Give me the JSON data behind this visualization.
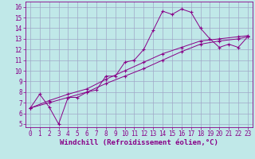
{
  "xlabel": "Windchill (Refroidissement éolien,°C)",
  "xlim_min": -0.5,
  "xlim_max": 23.5,
  "ylim_min": 4.7,
  "ylim_max": 16.5,
  "xticks": [
    0,
    1,
    2,
    3,
    4,
    5,
    6,
    7,
    8,
    9,
    10,
    11,
    12,
    13,
    14,
    15,
    16,
    17,
    18,
    19,
    20,
    21,
    22,
    23
  ],
  "yticks": [
    5,
    6,
    7,
    8,
    9,
    10,
    11,
    12,
    13,
    14,
    15,
    16
  ],
  "background_color": "#c0e8e8",
  "grid_color": "#a0a8c8",
  "line_color": "#880088",
  "line1_x": [
    0,
    1,
    2,
    3,
    4,
    5,
    6,
    7,
    8,
    9,
    10,
    11,
    12,
    13,
    14,
    15,
    16,
    17,
    18,
    19,
    20,
    21,
    22,
    23
  ],
  "line1_y": [
    6.5,
    7.8,
    6.6,
    5.0,
    7.5,
    7.5,
    8.0,
    8.2,
    9.5,
    9.5,
    10.8,
    11.0,
    12.0,
    13.8,
    15.6,
    15.3,
    15.8,
    15.5,
    14.0,
    13.0,
    12.2,
    12.5,
    12.2,
    13.2
  ],
  "line2_x": [
    0,
    2,
    4,
    6,
    8,
    10,
    12,
    14,
    16,
    18,
    20,
    22,
    23
  ],
  "line2_y": [
    6.5,
    7.0,
    7.5,
    8.0,
    8.8,
    9.5,
    10.2,
    11.0,
    11.8,
    12.5,
    12.8,
    13.0,
    13.2
  ],
  "line3_x": [
    0,
    2,
    4,
    6,
    8,
    10,
    12,
    14,
    16,
    18,
    20,
    22,
    23
  ],
  "line3_y": [
    6.5,
    7.2,
    7.8,
    8.3,
    9.2,
    10.0,
    10.8,
    11.6,
    12.2,
    12.8,
    13.0,
    13.2,
    13.3
  ],
  "tick_fontsize": 5.5,
  "xlabel_fontsize": 6.5
}
